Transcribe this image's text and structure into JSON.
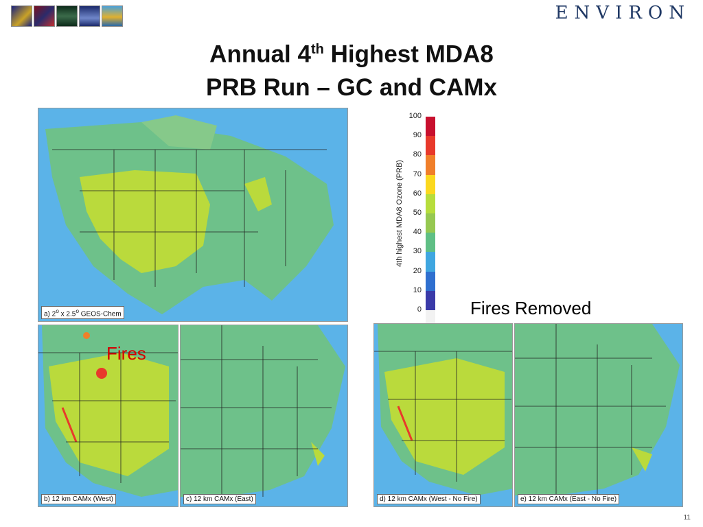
{
  "header": {
    "logos": [
      "globe-logo",
      "dna-logo",
      "lantern-logo",
      "building-logo",
      "balloon-logo"
    ],
    "brand": "ENVIRON"
  },
  "title": {
    "line1_pre": "Annual 4",
    "line1_sup": "th",
    "line1_post": " Highest MDA8",
    "line2": "PRB Run – GC and CAMx"
  },
  "colorbar": {
    "title": "4th highest MDA8 Ozone (PRB)",
    "ticks": [
      "100",
      "90",
      "80",
      "70",
      "60",
      "50",
      "40",
      "30",
      "20",
      "10",
      "0"
    ],
    "colors": [
      "#c8102e",
      "#e8392b",
      "#f07f2a",
      "#fbd81e",
      "#b7dd3c",
      "#96c851",
      "#5fbf85",
      "#3fa6e0",
      "#2f6fcf",
      "#3a3aa8",
      "#f2f2f2"
    ]
  },
  "maps": {
    "a": {
      "caption_pre": "a) 2",
      "caption_sup1": "o",
      "caption_mid": " x 2.5",
      "caption_sup2": "o",
      "caption_post": " GEOS-Chem"
    },
    "b": {
      "caption": "b) 12 km CAMx (West)"
    },
    "c": {
      "caption": "c) 12 km CAMx (East)"
    },
    "d": {
      "caption": "d) 12 km CAMx (West - No Fire)"
    },
    "e": {
      "caption": "e) 12 km CAMx (East - No Fire)"
    }
  },
  "annotations": {
    "fires": "Fires",
    "fires_removed": "Fires Removed"
  },
  "footer": {
    "slide_number": "11"
  }
}
